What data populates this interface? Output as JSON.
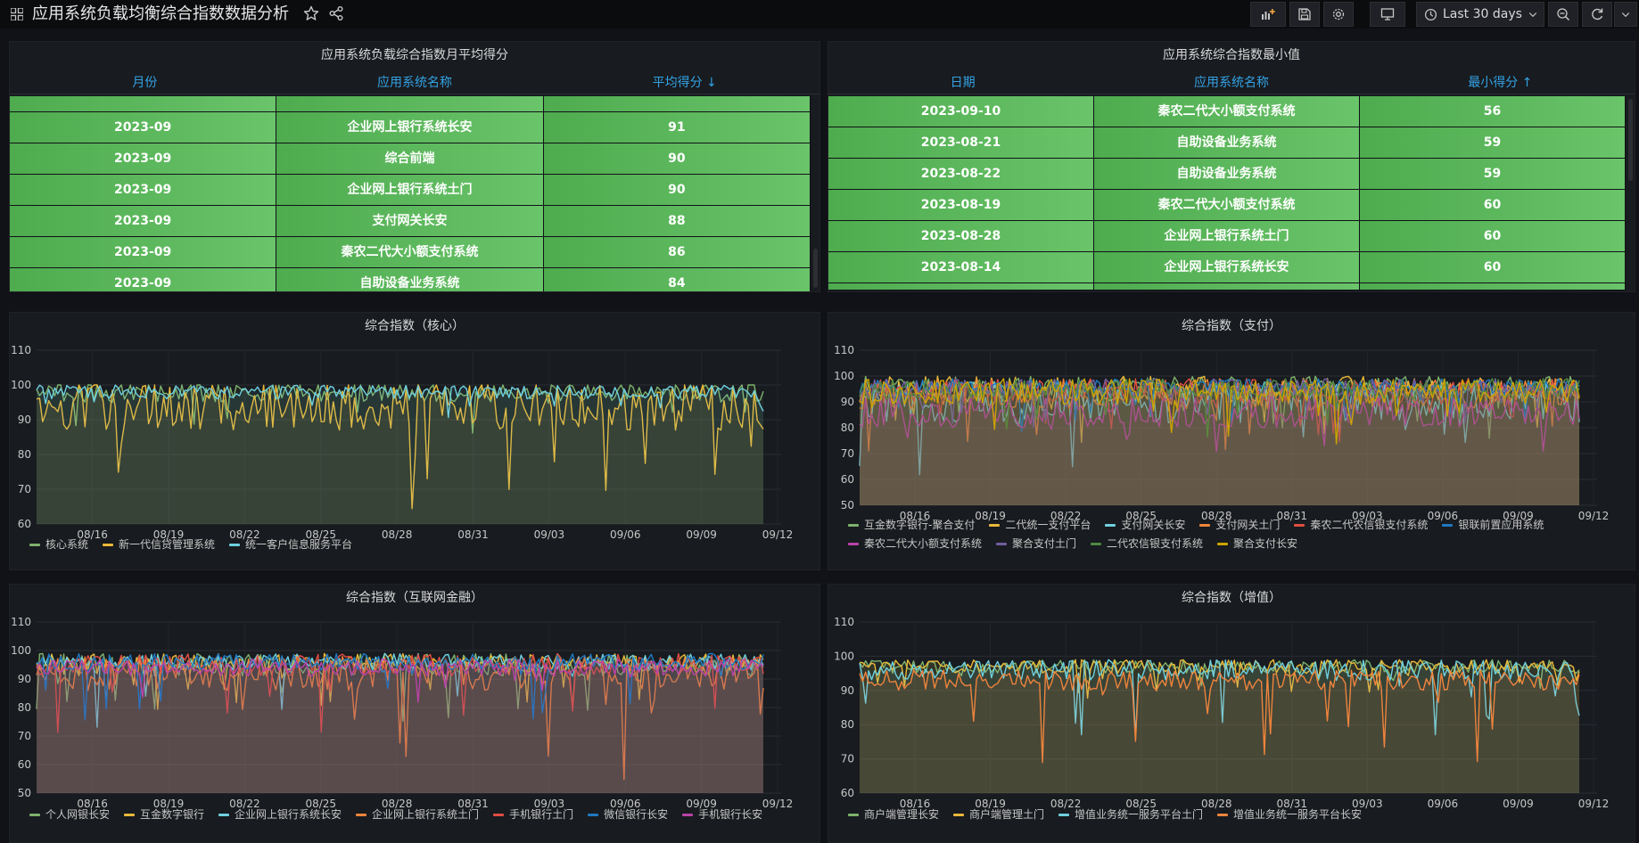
{
  "header": {
    "title": "应用系统负载均衡综合指数数据分析",
    "time_range": "Last 30 days"
  },
  "colors": {
    "cell_green": "#5cb85c",
    "header_blue": "#33a2e5"
  },
  "table_avg": {
    "title": "应用系统负载综合指数月平均得分",
    "columns": [
      "月份",
      "应用系统名称",
      "平均得分 ↓"
    ],
    "rows": [
      [
        "2023-09",
        "企业网上银行系统长安",
        "91"
      ],
      [
        "2023-09",
        "综合前端",
        "90"
      ],
      [
        "2023-09",
        "企业网上银行系统土门",
        "90"
      ],
      [
        "2023-09",
        "支付网关长安",
        "88"
      ],
      [
        "2023-09",
        "秦农二代大小额支付系统",
        "86"
      ],
      [
        "2023-09",
        "自助设备业务系统",
        "84"
      ]
    ]
  },
  "table_min": {
    "title": "应用系统综合指数最小值",
    "columns": [
      "日期",
      "应用系统名称",
      "最小得分 ↑"
    ],
    "rows": [
      [
        "2023-09-10",
        "秦农二代大小额支付系统",
        "56"
      ],
      [
        "2023-08-21",
        "自助设备业务系统",
        "59"
      ],
      [
        "2023-08-22",
        "自助设备业务系统",
        "59"
      ],
      [
        "2023-08-19",
        "秦农二代大小额支付系统",
        "60"
      ],
      [
        "2023-08-28",
        "企业网上银行系统土门",
        "60"
      ],
      [
        "2023-08-14",
        "企业网上银行系统长安",
        "60"
      ]
    ]
  },
  "chart_data": [
    {
      "type": "line",
      "title": "综合指数（核心）",
      "x_ticks": [
        "08/16",
        "08/19",
        "08/22",
        "08/25",
        "08/28",
        "08/31",
        "09/03",
        "09/06",
        "09/09",
        "09/12"
      ],
      "y_ticks": [
        60,
        70,
        80,
        90,
        100,
        110
      ],
      "ylim": [
        60,
        110
      ],
      "fill_area": true,
      "series": [
        {
          "name": "核心系统",
          "color": "#7eb26d",
          "base": 98,
          "spread": 3,
          "dip": 10
        },
        {
          "name": "新一代信贷管理系统",
          "color": "#eab839",
          "base": 94,
          "spread": 7,
          "dip": 28
        },
        {
          "name": "统一客户信息服务平台",
          "color": "#6ed0e0",
          "base": 98,
          "spread": 2,
          "dip": 6
        }
      ]
    },
    {
      "type": "line",
      "title": "综合指数（支付）",
      "x_ticks": [
        "08/16",
        "08/19",
        "08/22",
        "08/25",
        "08/28",
        "08/31",
        "09/03",
        "09/06",
        "09/09",
        "09/12"
      ],
      "y_ticks": [
        50,
        60,
        70,
        80,
        90,
        100,
        110
      ],
      "ylim": [
        50,
        110
      ],
      "fill_area": true,
      "series": [
        {
          "name": "互金数字银行-聚合支付",
          "color": "#7eb26d",
          "base": 96,
          "spread": 4,
          "dip": 20
        },
        {
          "name": "二代统一支付平台",
          "color": "#eab839",
          "base": 95,
          "spread": 5,
          "dip": 20
        },
        {
          "name": "支付网关长安",
          "color": "#6ed0e0",
          "base": 90,
          "spread": 8,
          "dip": 25
        },
        {
          "name": "支付网关土门",
          "color": "#ef843c",
          "base": 93,
          "spread": 6,
          "dip": 20
        },
        {
          "name": "秦农二代农信银支付系统",
          "color": "#e24d42",
          "base": 94,
          "spread": 5,
          "dip": 18
        },
        {
          "name": "银联前置应用系统",
          "color": "#1f78c1",
          "base": 96,
          "spread": 3,
          "dip": 15
        },
        {
          "name": "秦农二代大小额支付系统",
          "color": "#ba43a9",
          "base": 86,
          "spread": 6,
          "dip": 15
        },
        {
          "name": "聚合支付土门",
          "color": "#705da0",
          "base": 95,
          "spread": 4,
          "dip": 15
        },
        {
          "name": "二代农信银支付系统",
          "color": "#508642",
          "base": 95,
          "spread": 4,
          "dip": 15
        },
        {
          "name": "聚合支付长安",
          "color": "#cca300",
          "base": 94,
          "spread": 5,
          "dip": 20
        }
      ]
    },
    {
      "type": "line",
      "title": "综合指数（互联网金融）",
      "x_ticks": [
        "08/16",
        "08/19",
        "08/22",
        "08/25",
        "08/28",
        "08/31",
        "09/03",
        "09/06",
        "09/09",
        "09/12"
      ],
      "y_ticks": [
        50,
        60,
        70,
        80,
        90,
        100,
        110
      ],
      "ylim": [
        50,
        110
      ],
      "fill_area": true,
      "series": [
        {
          "name": "个人网银长安",
          "color": "#7eb26d",
          "base": 95,
          "spread": 4,
          "dip": 20
        },
        {
          "name": "互金数字银行",
          "color": "#eab839",
          "base": 96,
          "spread": 3,
          "dip": 15
        },
        {
          "name": "企业网上银行系统长安",
          "color": "#6ed0e0",
          "base": 96,
          "spread": 3,
          "dip": 30
        },
        {
          "name": "企业网上银行系统土门",
          "color": "#ef843c",
          "base": 92,
          "spread": 6,
          "dip": 35
        },
        {
          "name": "手机银行土门",
          "color": "#e24d42",
          "base": 95,
          "spread": 4,
          "dip": 25
        },
        {
          "name": "微信银行长安",
          "color": "#1f78c1",
          "base": 96,
          "spread": 3,
          "dip": 25
        },
        {
          "name": "手机银行长安",
          "color": "#ba43a9",
          "base": 94,
          "spread": 3,
          "dip": 12
        }
      ]
    },
    {
      "type": "line",
      "title": "综合指数（增值）",
      "x_ticks": [
        "08/16",
        "08/19",
        "08/22",
        "08/25",
        "08/28",
        "08/31",
        "09/03",
        "09/06",
        "09/09",
        "09/12"
      ],
      "y_ticks": [
        60,
        70,
        80,
        90,
        100,
        110
      ],
      "ylim": [
        60,
        110
      ],
      "fill_area": true,
      "series": [
        {
          "name": "商户端管理长安",
          "color": "#7eb26d",
          "base": 97,
          "spread": 2,
          "dip": 8
        },
        {
          "name": "商户端管理土门",
          "color": "#eab839",
          "base": 97,
          "spread": 2,
          "dip": 8
        },
        {
          "name": "增值业务统一服务平台土门",
          "color": "#6ed0e0",
          "base": 96,
          "spread": 3,
          "dip": 20
        },
        {
          "name": "增值业务统一服务平台长安",
          "color": "#ef843c",
          "base": 93,
          "spread": 3,
          "dip": 25
        }
      ]
    }
  ]
}
